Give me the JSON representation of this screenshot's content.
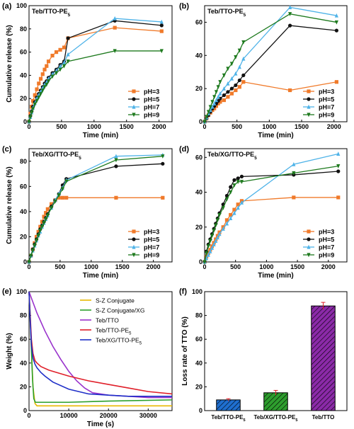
{
  "colors": {
    "orange": "#f07a2a",
    "black": "#111111",
    "lightblue": "#4fb3e8",
    "green": "#1e7a1e",
    "szc": "#e8b800",
    "szcxg": "#2ca02c",
    "tebtto": "#9932cc",
    "tebttope5": "#e0202a",
    "tebxgttope5": "#1f2fc8",
    "bar1": "#1f6fd0",
    "bar2": "#2e9e2e",
    "bar3": "#8b2aa8"
  },
  "chart_data": [
    {
      "panel": "(a)",
      "type": "line",
      "title": "Teb/TTO-PE5",
      "xlabel": "Time (min)",
      "ylabel": "Cumulative release (%)",
      "xlim": [
        0,
        2200
      ],
      "ylim": [
        0,
        100
      ],
      "xticks": [
        0,
        500,
        1000,
        1500,
        2000
      ],
      "yticks": [
        0,
        20,
        40,
        60,
        80,
        100
      ],
      "legend": "bottom-right",
      "series": [
        {
          "name": "pH=3",
          "color": "orange",
          "marker": "square",
          "x": [
            0,
            20,
            40,
            60,
            90,
            120,
            150,
            180,
            210,
            240,
            270,
            300,
            360,
            420,
            480,
            540,
            600,
            1320,
            2040
          ],
          "y": [
            0,
            7,
            13,
            18,
            23,
            28,
            33,
            37,
            41,
            45,
            48,
            52,
            57,
            60,
            62,
            64,
            72,
            81,
            78
          ]
        },
        {
          "name": "pH=5",
          "color": "black",
          "marker": "circle",
          "x": [
            0,
            20,
            40,
            60,
            90,
            120,
            150,
            180,
            210,
            240,
            270,
            300,
            360,
            420,
            480,
            540,
            600,
            1320,
            2040
          ],
          "y": [
            0,
            5,
            9,
            13,
            17,
            21,
            24,
            27,
            30,
            33,
            35,
            38,
            42,
            45,
            49,
            52,
            72,
            87,
            83
          ]
        },
        {
          "name": "pH=7",
          "color": "lightblue",
          "marker": "triangle-up",
          "x": [
            0,
            20,
            40,
            60,
            90,
            120,
            150,
            180,
            210,
            240,
            270,
            300,
            360,
            420,
            480,
            540,
            600,
            1320,
            2040
          ],
          "y": [
            0,
            4,
            8,
            12,
            16,
            20,
            23,
            26,
            29,
            32,
            34,
            37,
            41,
            44,
            48,
            51,
            58,
            89,
            86
          ]
        },
        {
          "name": "pH=9",
          "color": "green",
          "marker": "triangle-down",
          "x": [
            0,
            20,
            40,
            60,
            90,
            120,
            150,
            180,
            210,
            240,
            270,
            300,
            360,
            420,
            480,
            540,
            600,
            1320,
            2040
          ],
          "y": [
            0,
            4,
            8,
            11,
            15,
            18,
            21,
            24,
            27,
            30,
            32,
            35,
            39,
            42,
            45,
            48,
            52,
            61,
            61
          ]
        }
      ]
    },
    {
      "panel": "(b)",
      "type": "line",
      "title": "Teb/TTO-PE5",
      "xlabel": "Time (min)",
      "ylabel": "",
      "xlim": [
        0,
        2200
      ],
      "ylim": [
        0,
        70
      ],
      "xticks": [
        0,
        500,
        1000,
        1500,
        2000
      ],
      "yticks": [
        0,
        20,
        40,
        60
      ],
      "legend": "bottom-right",
      "series": [
        {
          "name": "pH=3",
          "color": "orange",
          "marker": "square",
          "x": [
            0,
            30,
            60,
            90,
            120,
            150,
            180,
            210,
            240,
            300,
            360,
            420,
            480,
            540,
            600,
            1320,
            2040
          ],
          "y": [
            0,
            2,
            4,
            5.5,
            7,
            8,
            9.5,
            11,
            12,
            13,
            15,
            17,
            19,
            21,
            24,
            19,
            24
          ]
        },
        {
          "name": "pH=5",
          "color": "black",
          "marker": "circle",
          "x": [
            0,
            30,
            60,
            90,
            120,
            150,
            180,
            210,
            240,
            300,
            360,
            420,
            480,
            540,
            600,
            1320,
            2040
          ],
          "y": [
            0,
            2,
            4,
            6,
            8,
            9.5,
            11,
            12.5,
            14,
            16,
            18,
            20,
            22,
            25,
            28,
            58,
            55
          ]
        },
        {
          "name": "pH=7",
          "color": "lightblue",
          "marker": "triangle-up",
          "x": [
            0,
            30,
            60,
            90,
            120,
            150,
            180,
            210,
            240,
            300,
            360,
            420,
            480,
            540,
            600,
            1320,
            2040
          ],
          "y": [
            0,
            2.5,
            5,
            7,
            9,
            11,
            13,
            15,
            17,
            20,
            23,
            26,
            29,
            33,
            38,
            69,
            64
          ]
        },
        {
          "name": "pH=9",
          "color": "green",
          "marker": "triangle-down",
          "x": [
            0,
            30,
            60,
            90,
            120,
            150,
            180,
            210,
            240,
            300,
            360,
            420,
            480,
            540,
            600,
            1320,
            2040
          ],
          "y": [
            0,
            3,
            6,
            9,
            12,
            15,
            18,
            21,
            24,
            28,
            32,
            35,
            39,
            43,
            48,
            65,
            60
          ]
        }
      ]
    },
    {
      "panel": "(c)",
      "type": "line",
      "title": "Teb/XG/TTO-PE5",
      "xlabel": "Time (min)",
      "ylabel": "Cumulative release (%)",
      "xlim": [
        0,
        2300
      ],
      "ylim": [
        0,
        90
      ],
      "xticks": [
        0,
        500,
        1000,
        1500,
        2000
      ],
      "yticks": [
        0,
        20,
        40,
        60,
        80
      ],
      "legend": "bottom-right",
      "series": [
        {
          "name": "pH=3",
          "color": "orange",
          "marker": "square",
          "x": [
            0,
            30,
            60,
            90,
            120,
            150,
            180,
            210,
            240,
            270,
            300,
            360,
            420,
            480,
            540,
            600,
            1400,
            2150
          ],
          "y": [
            0,
            5,
            10,
            15,
            20,
            24,
            28,
            32,
            36,
            39,
            42,
            46,
            49,
            51,
            51,
            51,
            51,
            51
          ]
        },
        {
          "name": "pH=5",
          "color": "black",
          "marker": "circle",
          "x": [
            0,
            30,
            60,
            90,
            120,
            150,
            180,
            210,
            240,
            270,
            300,
            360,
            420,
            480,
            540,
            600,
            1400,
            2150
          ],
          "y": [
            0,
            5,
            10,
            14,
            18,
            22,
            26,
            29,
            32,
            35,
            38,
            44,
            49,
            54,
            61,
            66,
            76,
            78
          ]
        },
        {
          "name": "pH=7",
          "color": "lightblue",
          "marker": "triangle-up",
          "x": [
            0,
            30,
            60,
            90,
            120,
            150,
            180,
            210,
            240,
            270,
            300,
            360,
            420,
            480,
            540,
            600,
            1400,
            2150
          ],
          "y": [
            0,
            5,
            9,
            13,
            17,
            21,
            24,
            28,
            31,
            34,
            37,
            43,
            49,
            54,
            59,
            65,
            84,
            85
          ]
        },
        {
          "name": "pH=9",
          "color": "green",
          "marker": "triangle-down",
          "x": [
            0,
            30,
            60,
            90,
            120,
            150,
            180,
            210,
            240,
            270,
            300,
            360,
            420,
            480,
            540,
            600,
            1400,
            2150
          ],
          "y": [
            0,
            5,
            9,
            13,
            17,
            21,
            25,
            28,
            31,
            34,
            37,
            43,
            48,
            53,
            58,
            64,
            81,
            84
          ]
        }
      ]
    },
    {
      "panel": "(d)",
      "type": "line",
      "title": "Teb/XG/TTO-PE5",
      "xlabel": "Time (min)",
      "ylabel": "",
      "xlim": [
        0,
        2300
      ],
      "ylim": [
        0,
        65
      ],
      "xticks": [
        0,
        500,
        1000,
        1500,
        2000
      ],
      "yticks": [
        0,
        20,
        40,
        60
      ],
      "legend": "bottom-right",
      "series": [
        {
          "name": "pH=3",
          "color": "orange",
          "marker": "square",
          "x": [
            0,
            30,
            60,
            90,
            120,
            150,
            180,
            210,
            240,
            300,
            360,
            420,
            480,
            540,
            600,
            1440,
            2160
          ],
          "y": [
            0,
            3,
            5,
            7,
            9,
            11,
            13,
            15,
            17,
            20,
            24,
            27,
            30,
            33,
            35,
            37,
            37
          ]
        },
        {
          "name": "pH=5",
          "color": "black",
          "marker": "circle",
          "x": [
            0,
            30,
            60,
            90,
            120,
            150,
            180,
            210,
            240,
            300,
            360,
            420,
            480,
            540,
            600,
            1440,
            2160
          ],
          "y": [
            0,
            6,
            10,
            13,
            16,
            19,
            22,
            25,
            28,
            33,
            38,
            43,
            47,
            48,
            49,
            50,
            52
          ]
        },
        {
          "name": "pH=7",
          "color": "lightblue",
          "marker": "triangle-up",
          "x": [
            0,
            30,
            60,
            90,
            120,
            150,
            180,
            210,
            240,
            300,
            360,
            420,
            480,
            540,
            600,
            1440,
            2160
          ],
          "y": [
            0,
            2,
            4,
            6,
            8,
            10,
            12,
            14,
            16,
            19,
            22,
            25,
            28,
            31,
            34,
            56,
            62
          ]
        },
        {
          "name": "pH=9",
          "color": "green",
          "marker": "triangle-down",
          "x": [
            0,
            30,
            60,
            90,
            120,
            150,
            180,
            210,
            240,
            300,
            360,
            420,
            480,
            540,
            600,
            1440,
            2160
          ],
          "y": [
            0,
            5,
            9,
            12,
            15,
            18,
            21,
            24,
            27,
            31,
            36,
            40,
            44,
            46,
            46,
            51,
            55
          ]
        }
      ]
    },
    {
      "panel": "(e)",
      "type": "line",
      "xlabel": "Time (s)",
      "ylabel": "Weight (%)",
      "xlim": [
        0,
        36000
      ],
      "ylim": [
        0,
        100
      ],
      "xticks": [
        0,
        10000,
        20000,
        30000
      ],
      "yticks": [
        0,
        20,
        40,
        60,
        80,
        100
      ],
      "legend": "top-right",
      "series": [
        {
          "name": "S-Z Conjugate",
          "color": "szc",
          "x": [
            0,
            500,
            1000,
            1500,
            2000,
            2500,
            5000,
            10000,
            20000,
            30000,
            36000
          ],
          "y": [
            100,
            60,
            20,
            6,
            4,
            4,
            4,
            4,
            4,
            4,
            4
          ]
        },
        {
          "name": "S-Z Conjugate/XG",
          "color": "szcxg",
          "x": [
            0,
            300,
            600,
            900,
            1200,
            1600,
            2000,
            5000,
            10000,
            20000,
            36000
          ],
          "y": [
            100,
            80,
            50,
            25,
            10,
            7,
            7,
            7,
            7,
            8,
            9
          ]
        },
        {
          "name": "Teb/TTO",
          "color": "tebtto",
          "x": [
            0,
            2000,
            4000,
            6000,
            8000,
            10000,
            12000,
            14000,
            16000,
            20000,
            25000,
            30000,
            36000
          ],
          "y": [
            100,
            82,
            67,
            54,
            43,
            33,
            25,
            19,
            15,
            13,
            12,
            11,
            11
          ]
        },
        {
          "name": "Teb/TTO-PE5",
          "color": "tebttope5",
          "x": [
            0,
            300,
            600,
            1000,
            1500,
            2000,
            3000,
            5000,
            10000,
            15000,
            20000,
            25000,
            30000,
            36000
          ],
          "y": [
            100,
            80,
            60,
            48,
            42,
            40,
            37,
            34,
            29,
            25,
            22,
            19,
            16,
            14
          ]
        },
        {
          "name": "Teb/XG/TTO-PE5",
          "color": "tebxgttope5",
          "x": [
            0,
            300,
            600,
            1000,
            1500,
            2000,
            3000,
            4000,
            6000,
            10000,
            15000,
            20000,
            25000,
            30000,
            36000
          ],
          "y": [
            100,
            75,
            55,
            44,
            39,
            36,
            32,
            29,
            24,
            18,
            14,
            13,
            12,
            12,
            12
          ]
        }
      ]
    },
    {
      "panel": "(f)",
      "type": "bar",
      "xlabel": "",
      "ylabel": "Loss rate of TTO (%)",
      "ylim": [
        0,
        100
      ],
      "yticks": [
        0,
        20,
        40,
        60,
        80,
        100
      ],
      "categories": [
        "Teb/TTO-PE5",
        "Teb/XG/TTO-PE5",
        "Teb/TTO"
      ],
      "values": [
        9,
        15,
        88
      ],
      "errors": [
        1,
        2,
        3
      ],
      "colors": [
        "bar1",
        "bar2",
        "bar3"
      ]
    }
  ]
}
